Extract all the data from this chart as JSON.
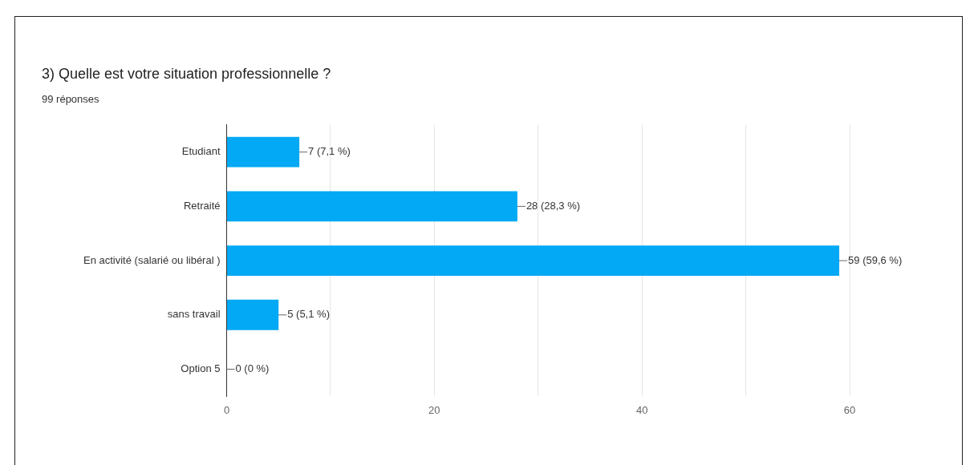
{
  "chart_data": {
    "type": "bar",
    "orientation": "horizontal",
    "title": "3) Quelle est votre situation professionnelle ?",
    "subtitle": "99 réponses",
    "categories": [
      "Etudiant",
      "Retraité",
      "En activité (salarié ou libéral )",
      "sans travail",
      "Option 5"
    ],
    "values": [
      7,
      28,
      59,
      5,
      0
    ],
    "value_labels": [
      "7 (7,1 %)",
      "28 (28,3 %)",
      "59 (59,6 %)",
      "5 (5,1 %)",
      "0 (0 %)"
    ],
    "color": "#03a9f4",
    "xlim": [
      0,
      60
    ],
    "xticks": [
      0,
      {
        "value": 10,
        "label": null
      },
      20,
      {
        "value": 30,
        "label": null
      },
      40,
      {
        "value": 50,
        "label": null
      },
      60
    ],
    "grid": "x",
    "legend": false
  }
}
